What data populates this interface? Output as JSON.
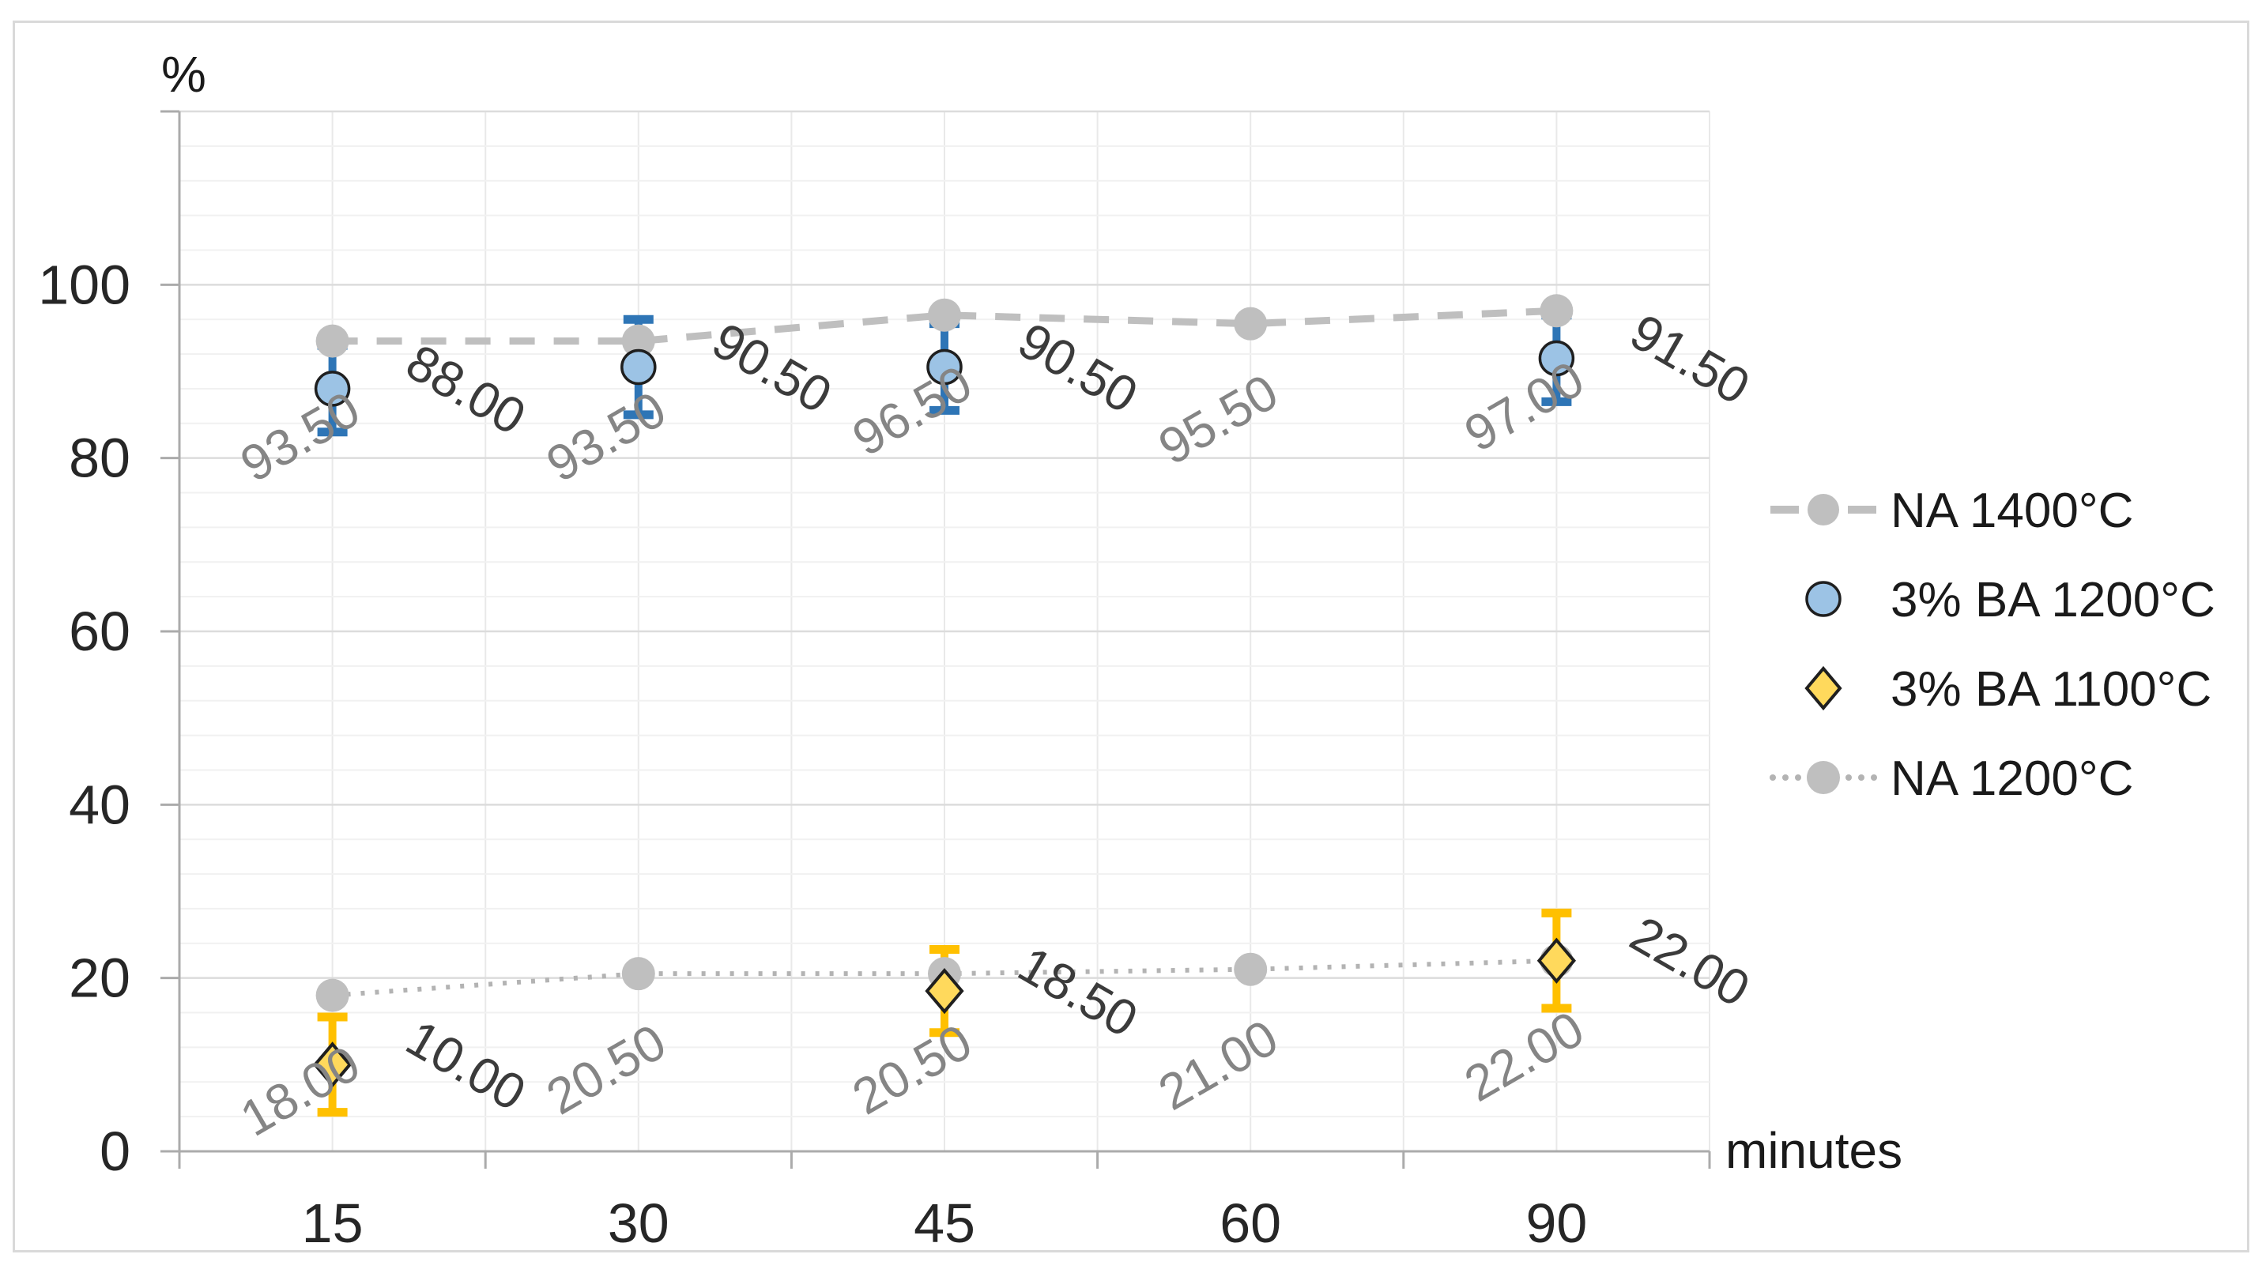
{
  "chart_data": {
    "type": "scatter",
    "title": "",
    "xlabel": "minutes",
    "ylabel": "%",
    "x_axis": {
      "categories": [
        "15",
        "30",
        "45",
        "60",
        "90"
      ]
    },
    "y_axis": {
      "ticks": [
        "0",
        "20",
        "40",
        "60",
        "80",
        "100"
      ],
      "tick_values": [
        0,
        20,
        40,
        60,
        80,
        100
      ],
      "max": 120,
      "major_unit": 20,
      "minor_unit": 4,
      "grid": "on"
    },
    "series": [
      {
        "name": "NA 1400°C",
        "marker": "circle",
        "color_key": "gray",
        "line": "dashed",
        "values": [
          93.5,
          93.5,
          96.5,
          95.5,
          97.0
        ],
        "labels": [
          "93.50",
          "93.50",
          "96.50",
          "95.50",
          "97.00"
        ],
        "errors": [
          null,
          null,
          null,
          null,
          null
        ],
        "label_style": "gray"
      },
      {
        "name": "3% BA 1200°C",
        "marker": "circle-outlined",
        "color_key": "blue",
        "line": "none",
        "values": [
          88.0,
          90.5,
          90.5,
          null,
          91.5
        ],
        "labels": [
          "88.00",
          "90.50",
          "90.50",
          null,
          "91.50"
        ],
        "errors": [
          5.0,
          5.5,
          5.0,
          null,
          5.0
        ],
        "label_style": "dark"
      },
      {
        "name": "3% BA 1100°C",
        "marker": "diamond",
        "color_key": "yellow",
        "line": "none",
        "values": [
          10.0,
          null,
          18.5,
          null,
          22.0
        ],
        "labels": [
          "10.00",
          null,
          "18.50",
          null,
          "22.00"
        ],
        "errors": [
          5.5,
          null,
          4.8,
          null,
          5.5
        ],
        "label_style": "dark"
      },
      {
        "name": "NA 1200°C",
        "marker": "circle",
        "color_key": "gray",
        "line": "dotted",
        "values": [
          18.0,
          20.5,
          20.5,
          21.0,
          22.0
        ],
        "labels": [
          "18.00",
          "20.50",
          "20.50",
          "21.00",
          "22.00"
        ],
        "errors": [
          null,
          null,
          null,
          null,
          null
        ],
        "label_style": "gray"
      }
    ],
    "legend": {
      "position": "right",
      "items": [
        {
          "label": "NA 1400°C",
          "swatch": "dashed-line-circle"
        },
        {
          "label": "3% BA 1200°C",
          "swatch": "blue-circle"
        },
        {
          "label": "3% BA 1100°C",
          "swatch": "yellow-diamond"
        },
        {
          "label": "NA 1200°C",
          "swatch": "dotted-line-circle"
        }
      ]
    },
    "colors": {
      "gray_series": "#bfbfbf",
      "gray_dotted": "#b3b3b3",
      "gray_label": "#858585",
      "dark_label": "#3b3b3b",
      "blue_fill": "#9cc3e5",
      "blue_error": "#2e75b6",
      "yellow_fill": "#ffd95c",
      "yellow_error": "#ffc000",
      "marker_outline": "#1f1f1f",
      "axis_line": "#ababab",
      "grid_major": "#dcdcdc",
      "grid_minor": "#f1f1f1",
      "grid_vertical": "#e9e9e9",
      "tick_label": "#262626",
      "legend_text": "#1a1a1a",
      "chart_border": "#d9d9d9"
    }
  }
}
